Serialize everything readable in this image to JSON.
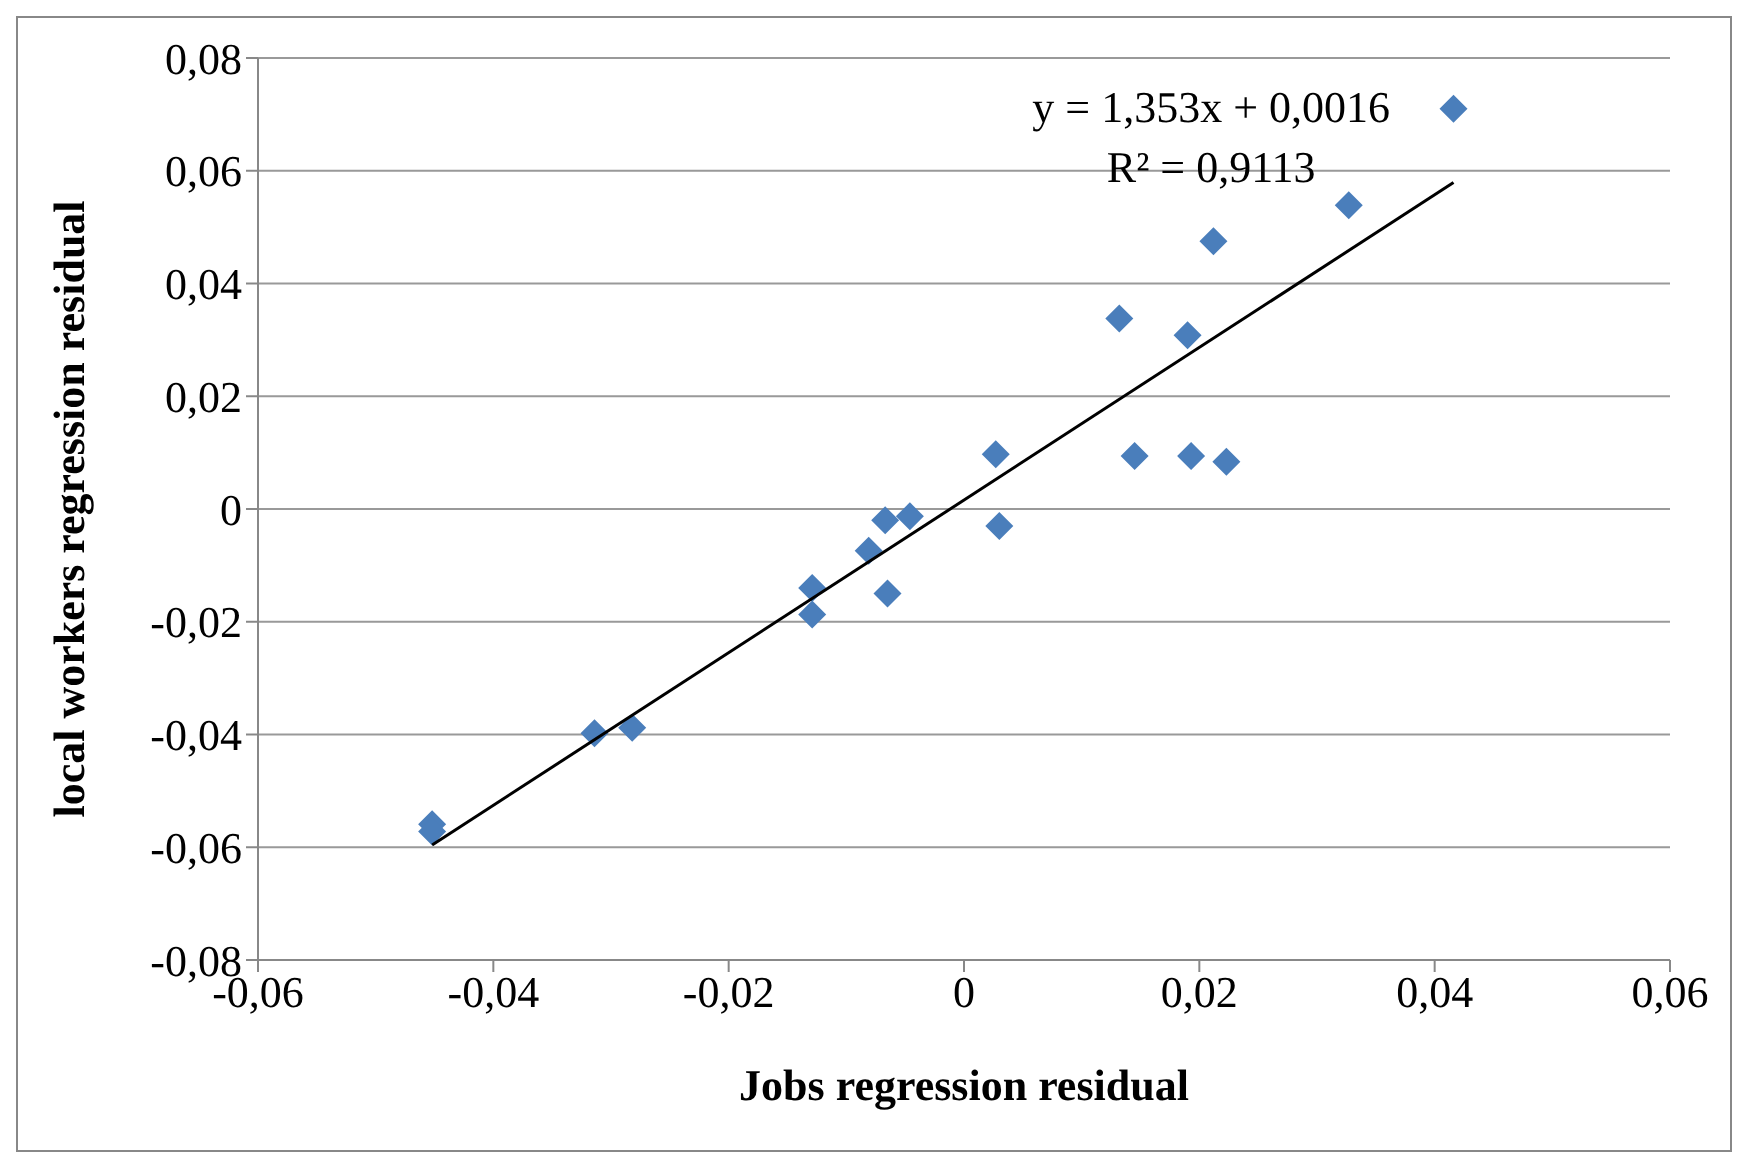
{
  "chart_data": {
    "type": "scatter",
    "xlabel": "Jobs regression residual",
    "ylabel": "local workers regression residual",
    "annotations": [
      "y = 1,353x + 0,0016",
      "R² = 0,9113"
    ],
    "xlim": [
      -0.06,
      0.06
    ],
    "ylim": [
      -0.08,
      0.08
    ],
    "xticks": [
      {
        "value": -0.06,
        "label": "-0,06"
      },
      {
        "value": -0.04,
        "label": "-0,04"
      },
      {
        "value": -0.02,
        "label": "-0,02"
      },
      0,
      {
        "value": 0.02,
        "label": "0,02"
      },
      {
        "value": 0.04,
        "label": "0,04"
      },
      {
        "value": 0.06,
        "label": "0,06"
      }
    ],
    "yticks": [
      {
        "value": -0.08,
        "label": "-0,08"
      },
      {
        "value": -0.06,
        "label": "-0,06"
      },
      {
        "value": -0.04,
        "label": "-0,04"
      },
      {
        "value": -0.02,
        "label": "-0,02"
      },
      0,
      {
        "value": 0.02,
        "label": "0,02"
      },
      {
        "value": 0.04,
        "label": "0,04"
      },
      {
        "value": 0.06,
        "label": "0,06"
      },
      {
        "value": 0.08,
        "label": "0,08"
      }
    ],
    "grid": "y",
    "series": [
      {
        "type": "scatter",
        "marker": "diamond",
        "color": "#4a7ebb",
        "x": [
          0.0416,
          0.0327,
          0.0212,
          0.0132,
          0.019,
          0.0145,
          0.0193,
          0.0223,
          0.0027,
          0.003,
          -0.0046,
          -0.0067,
          -0.0081,
          -0.0129,
          -0.0065,
          -0.0129,
          -0.0282,
          -0.0314,
          -0.0452,
          -0.0452
        ],
        "values": [
          0.071,
          0.0539,
          0.0475,
          0.0338,
          0.0308,
          0.0094,
          0.0094,
          0.0084,
          0.0097,
          -0.003,
          -0.0013,
          -0.002,
          -0.0074,
          -0.014,
          -0.015,
          -0.0187,
          -0.0388,
          -0.0398,
          -0.0559,
          -0.0572
        ]
      },
      {
        "type": "line",
        "marker": "none",
        "line_style": "solid",
        "color": "#000000",
        "x": [
          -0.0452,
          0.0416
        ],
        "values": [
          -0.0596,
          0.0579
        ]
      }
    ]
  }
}
